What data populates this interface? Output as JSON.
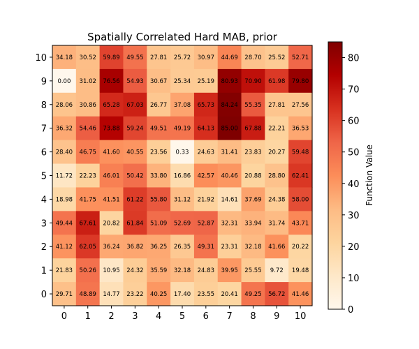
{
  "chart_data": {
    "type": "heatmap",
    "title": "Spatially Correlated Hard MAB, prior",
    "x_ticks": [
      "0",
      "1",
      "2",
      "3",
      "4",
      "5",
      "6",
      "7",
      "8",
      "9",
      "10"
    ],
    "y_ticks": [
      "0",
      "1",
      "2",
      "3",
      "4",
      "5",
      "6",
      "7",
      "8",
      "9",
      "10"
    ],
    "colormap": "OrRd-like (white to dark red)",
    "colorbar": {
      "label": "Function Value",
      "range": [
        0,
        85
      ],
      "ticks": [
        "0",
        "10",
        "20",
        "30",
        "40",
        "50",
        "60",
        "70",
        "80"
      ]
    },
    "rows_top_to_bottom": [
      {
        "y": "10",
        "values": [
          34.18,
          30.52,
          59.89,
          49.55,
          27.81,
          25.72,
          30.97,
          44.69,
          28.7,
          25.52,
          52.71
        ]
      },
      {
        "y": "9",
        "values": [
          0.0,
          31.02,
          76.56,
          54.93,
          30.67,
          25.34,
          25.19,
          80.93,
          70.9,
          61.98,
          79.8
        ]
      },
      {
        "y": "8",
        "values": [
          28.06,
          30.86,
          65.28,
          67.03,
          26.77,
          37.08,
          65.73,
          84.24,
          55.35,
          27.81,
          27.56
        ]
      },
      {
        "y": "7",
        "values": [
          36.32,
          54.46,
          73.88,
          59.24,
          49.51,
          49.19,
          64.13,
          85.0,
          67.88,
          22.21,
          36.53
        ]
      },
      {
        "y": "6",
        "values": [
          28.4,
          46.75,
          41.6,
          40.55,
          23.56,
          0.33,
          24.63,
          31.41,
          23.83,
          20.27,
          59.48
        ]
      },
      {
        "y": "5",
        "values": [
          11.72,
          22.23,
          46.01,
          50.42,
          33.8,
          16.86,
          42.57,
          40.46,
          20.88,
          28.8,
          62.41
        ]
      },
      {
        "y": "4",
        "values": [
          18.98,
          41.75,
          41.51,
          61.22,
          55.8,
          31.12,
          21.92,
          14.61,
          37.69,
          24.38,
          58.0
        ]
      },
      {
        "y": "3",
        "values": [
          49.44,
          67.61,
          20.82,
          61.84,
          51.09,
          52.69,
          52.87,
          32.31,
          33.94,
          31.74,
          43.71
        ]
      },
      {
        "y": "2",
        "values": [
          41.12,
          62.05,
          36.24,
          36.82,
          36.25,
          26.35,
          49.31,
          23.31,
          32.18,
          41.66,
          20.22
        ]
      },
      {
        "y": "1",
        "values": [
          21.83,
          50.26,
          10.95,
          24.32,
          35.59,
          32.18,
          24.83,
          39.95,
          25.55,
          9.72,
          19.48
        ]
      },
      {
        "y": "0",
        "values": [
          29.71,
          48.89,
          14.77,
          23.22,
          40.25,
          17.4,
          23.55,
          20.41,
          49.25,
          56.72,
          41.46
        ]
      }
    ]
  }
}
